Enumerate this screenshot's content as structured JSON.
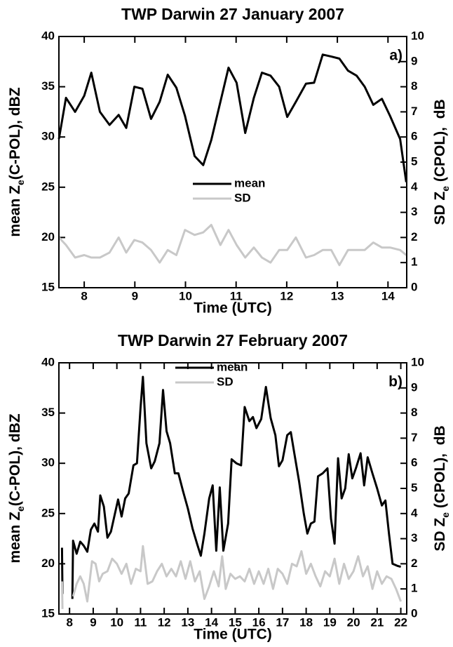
{
  "chart_data": [
    {
      "type": "line",
      "title": "TWP Darwin 27 January 2007",
      "xlabel": "Time (UTC)",
      "ylabel": [
        "mean Z",
        "e",
        "(C-POL), dBZ"
      ],
      "y2label": [
        "SD Z",
        "e",
        " (CPOL),  dB"
      ],
      "annotation": "a)",
      "legend": "center",
      "xlim": [
        7.5,
        14.37
      ],
      "xticks": [
        8,
        9,
        10,
        11,
        12,
        13,
        14
      ],
      "ylim": [
        15,
        40
      ],
      "yticks": [
        15,
        20,
        25,
        30,
        35,
        40
      ],
      "y2lim": [
        0,
        10
      ],
      "y2ticks": [
        0,
        1,
        2,
        3,
        4,
        5,
        6,
        7,
        8,
        9,
        10
      ],
      "series": [
        {
          "name": "mean",
          "color": "#000000",
          "x": [
            7.5,
            7.64,
            7.82,
            8.0,
            8.14,
            8.31,
            8.5,
            8.68,
            8.83,
            8.99,
            9.15,
            9.32,
            9.49,
            9.65,
            9.82,
            9.99,
            10.18,
            10.35,
            10.51,
            10.69,
            10.85,
            11.01,
            11.18,
            11.35,
            11.51,
            11.68,
            11.85,
            12.01,
            12.18,
            12.38,
            12.54,
            12.71,
            12.88,
            13.04,
            13.21,
            13.38,
            13.54,
            13.71,
            13.88,
            14.04,
            14.24,
            14.36
          ],
          "values": [
            29.8,
            33.9,
            32.5,
            34.1,
            36.4,
            32.5,
            31.2,
            32.2,
            30.9,
            35.0,
            34.8,
            31.8,
            33.5,
            36.2,
            34.9,
            32.1,
            28.1,
            27.2,
            29.7,
            33.5,
            36.9,
            35.4,
            30.4,
            33.9,
            36.4,
            36.1,
            35.0,
            32.0,
            33.5,
            35.3,
            35.4,
            38.2,
            38.0,
            37.8,
            36.6,
            36.1,
            35.0,
            33.2,
            33.8,
            32.1,
            29.8,
            25.5
          ]
        },
        {
          "name": "SD",
          "color": "#c8c8c8",
          "axis": "y2",
          "x": [
            7.5,
            7.64,
            7.82,
            8.0,
            8.14,
            8.31,
            8.5,
            8.68,
            8.83,
            8.99,
            9.15,
            9.32,
            9.49,
            9.65,
            9.82,
            9.99,
            10.18,
            10.35,
            10.51,
            10.69,
            10.85,
            11.01,
            11.18,
            11.35,
            11.51,
            11.68,
            11.85,
            12.01,
            12.18,
            12.38,
            12.54,
            12.71,
            12.88,
            13.04,
            13.21,
            13.38,
            13.54,
            13.71,
            13.88,
            14.04,
            14.24,
            14.36
          ],
          "values": [
            2.0,
            1.7,
            1.2,
            1.3,
            1.2,
            1.2,
            1.4,
            2.0,
            1.4,
            1.9,
            1.8,
            1.5,
            1.0,
            1.5,
            1.3,
            2.3,
            2.1,
            2.2,
            2.5,
            1.7,
            2.3,
            1.7,
            1.2,
            1.6,
            1.2,
            1.0,
            1.5,
            1.5,
            2.0,
            1.2,
            1.3,
            1.5,
            1.5,
            0.9,
            1.5,
            1.5,
            1.5,
            1.8,
            1.6,
            1.6,
            1.5,
            1.3
          ]
        }
      ]
    },
    {
      "type": "line",
      "title": "TWP Darwin 27 February 2007",
      "xlabel": "Time (UTC)",
      "ylabel": [
        "mean Z",
        "e",
        "(C-POL), dBZ"
      ],
      "y2label": [
        "SD Z",
        "e",
        " (CPOL),  dB"
      ],
      "annotation": "b)",
      "legend": "upper center",
      "xlim": [
        7.55,
        22.25
      ],
      "xticks": [
        8,
        9,
        10,
        11,
        12,
        13,
        14,
        15,
        16,
        17,
        18,
        19,
        20,
        21,
        22
      ],
      "ylim": [
        15,
        40
      ],
      "yticks": [
        15,
        20,
        25,
        30,
        35,
        40
      ],
      "y2lim": [
        0,
        10
      ],
      "y2ticks": [
        0,
        1,
        2,
        3,
        4,
        5,
        6,
        7,
        8,
        9,
        10
      ],
      "series": [
        {
          "name": "mean",
          "color": "#000000",
          "x": [
            7.68,
            7.7,
            7.9,
            8.12,
            8.15,
            8.3,
            8.45,
            8.6,
            8.75,
            8.9,
            9.05,
            9.2,
            9.3,
            9.45,
            9.6,
            9.75,
            9.9,
            10.05,
            10.2,
            10.35,
            10.5,
            10.7,
            10.85,
            11.0,
            11.1,
            11.25,
            11.45,
            11.6,
            11.8,
            11.95,
            12.1,
            12.25,
            12.45,
            12.6,
            12.8,
            13.0,
            13.2,
            13.4,
            13.55,
            13.7,
            13.9,
            14.05,
            14.2,
            14.35,
            14.5,
            14.7,
            14.85,
            15.05,
            15.25,
            15.4,
            15.6,
            15.75,
            15.9,
            16.1,
            16.3,
            16.5,
            16.7,
            16.85,
            17.0,
            17.2,
            17.35,
            17.5,
            17.7,
            17.9,
            18.05,
            18.2,
            18.35,
            18.5,
            18.7,
            18.9,
            19.05,
            19.2,
            19.35,
            19.5,
            19.65,
            19.8,
            19.95,
            20.1,
            20.3,
            20.45,
            20.6,
            20.8,
            21.0,
            21.2,
            21.35,
            21.5,
            21.65,
            21.85,
            22.0
          ],
          "values": [
            21.6,
            17.0,
            null,
            16.5,
            22.3,
            21.0,
            22.2,
            21.8,
            21.2,
            23.4,
            24.0,
            23.2,
            26.8,
            25.7,
            22.6,
            23.2,
            24.8,
            26.4,
            24.7,
            26.5,
            27.0,
            29.8,
            30.0,
            35.5,
            38.6,
            32.0,
            29.5,
            30.2,
            32.0,
            37.3,
            33.2,
            32.0,
            29.0,
            29.0,
            27.2,
            25.5,
            23.5,
            21.9,
            20.8,
            23.0,
            26.5,
            27.8,
            21.3,
            27.6,
            21.3,
            24.0,
            30.4,
            30.0,
            29.8,
            35.6,
            34.2,
            34.6,
            33.5,
            34.4,
            37.6,
            34.5,
            32.8,
            29.7,
            30.3,
            32.8,
            33.1,
            31.0,
            28.2,
            25.0,
            23.0,
            24.0,
            24.2,
            28.7,
            29.0,
            29.5,
            24.5,
            22.0,
            30.5,
            26.5,
            27.5,
            30.9,
            28.5,
            29.5,
            31.0,
            27.8,
            30.6,
            29.0,
            27.5,
            25.8,
            26.3,
            23.0,
            20.0,
            19.8,
            19.7
          ]
        },
        {
          "name": "SD",
          "color": "#c8c8c8",
          "axis": "y2",
          "x": [
            7.68,
            7.7,
            7.9,
            8.15,
            8.3,
            8.45,
            8.6,
            8.75,
            8.95,
            9.1,
            9.25,
            9.4,
            9.6,
            9.8,
            10.0,
            10.2,
            10.4,
            10.6,
            10.8,
            11.0,
            11.1,
            11.3,
            11.5,
            11.7,
            11.9,
            12.1,
            12.3,
            12.5,
            12.7,
            12.9,
            13.1,
            13.3,
            13.5,
            13.7,
            13.9,
            14.1,
            14.3,
            14.45,
            14.6,
            14.8,
            15.0,
            15.2,
            15.4,
            15.6,
            15.8,
            16.0,
            16.2,
            16.4,
            16.6,
            16.8,
            17.0,
            17.2,
            17.4,
            17.6,
            17.8,
            18.0,
            18.2,
            18.4,
            18.6,
            18.8,
            19.0,
            19.2,
            19.4,
            19.6,
            19.8,
            20.0,
            20.2,
            20.4,
            20.6,
            20.8,
            21.0,
            21.2,
            21.4,
            21.6,
            21.8,
            22.0
          ],
          "values": [
            1.3,
            0.2,
            null,
            0.7,
            1.2,
            1.5,
            1.2,
            0.5,
            2.1,
            2.0,
            1.3,
            1.6,
            1.7,
            2.2,
            2.0,
            1.6,
            2.0,
            1.2,
            1.8,
            1.7,
            2.7,
            1.2,
            1.3,
            1.7,
            2.0,
            1.5,
            1.8,
            1.5,
            2.1,
            1.4,
            2.1,
            1.3,
            1.7,
            0.6,
            1.1,
            1.7,
            1.1,
            2.3,
            1.0,
            1.6,
            1.4,
            1.5,
            1.3,
            1.8,
            1.2,
            1.7,
            1.2,
            1.8,
            1.0,
            1.8,
            1.6,
            1.2,
            2.0,
            1.9,
            2.5,
            1.6,
            2.0,
            1.5,
            1.1,
            1.7,
            1.5,
            2.2,
            1.2,
            2.0,
            1.4,
            1.7,
            2.3,
            1.5,
            1.9,
            1.0,
            1.7,
            1.2,
            1.5,
            1.4,
            1.0,
            0.5
          ]
        }
      ]
    }
  ]
}
